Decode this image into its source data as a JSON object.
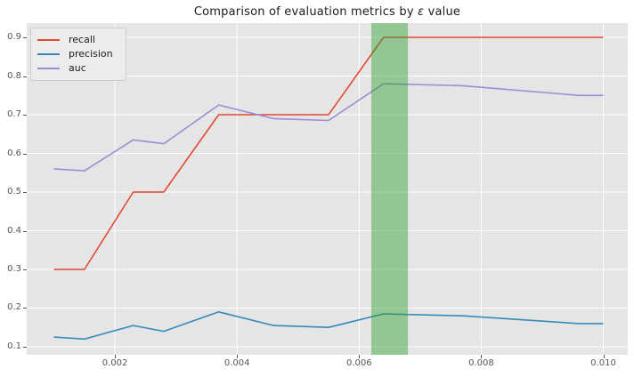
{
  "title": {
    "pre": "Comparison of evaluation metrics by ",
    "epsilon": "ε",
    "post": " value"
  },
  "style": {
    "plot_background": "#E5E5E5",
    "grid_color": "#FFFFFF",
    "tick_color": "#555555",
    "text_color": "#1c1c1c",
    "legend_background": "#ECECEC",
    "legend_border": "#CCCCCC"
  },
  "chart_data": {
    "type": "line",
    "title": "Comparison of evaluation metrics by ε value",
    "xlabel": "",
    "ylabel": "",
    "x": [
      0.001,
      0.0015,
      0.0023,
      0.0028,
      0.0037,
      0.0046,
      0.0055,
      0.0064,
      0.0077,
      0.0096,
      0.01
    ],
    "series": [
      {
        "name": "recall",
        "color": "#E24A33",
        "values": [
          0.3,
          0.3,
          0.5,
          0.5,
          0.7,
          0.7,
          0.7,
          0.9,
          0.9,
          0.9,
          0.9
        ]
      },
      {
        "name": "precision",
        "color": "#348ABD",
        "values": [
          0.125,
          0.12,
          0.155,
          0.14,
          0.19,
          0.155,
          0.15,
          0.185,
          0.18,
          0.16,
          0.16
        ]
      },
      {
        "name": "auc",
        "color": "#988ED5",
        "values": [
          0.56,
          0.555,
          0.635,
          0.625,
          0.725,
          0.69,
          0.685,
          0.78,
          0.775,
          0.75,
          0.75
        ]
      }
    ],
    "highlight_band": {
      "x0": 0.0062,
      "x1": 0.0068,
      "color": "#2ca02c",
      "opacity": 0.45
    },
    "xticks": [
      0.002,
      0.004,
      0.006,
      0.008,
      0.01
    ],
    "xtick_labels": [
      "0.002",
      "0.004",
      "0.006",
      "0.008",
      "0.010"
    ],
    "yticks": [
      0.1,
      0.2,
      0.3,
      0.4,
      0.5,
      0.6,
      0.7,
      0.8,
      0.9
    ],
    "ytick_labels": [
      "0.1",
      "0.2",
      "0.3",
      "0.4",
      "0.5",
      "0.6",
      "0.7",
      "0.8",
      "0.9"
    ],
    "xlim": [
      0.000555,
      0.010401
    ],
    "ylim": [
      0.0793,
      0.9368
    ],
    "grid": true,
    "legend_position": "upper left"
  }
}
